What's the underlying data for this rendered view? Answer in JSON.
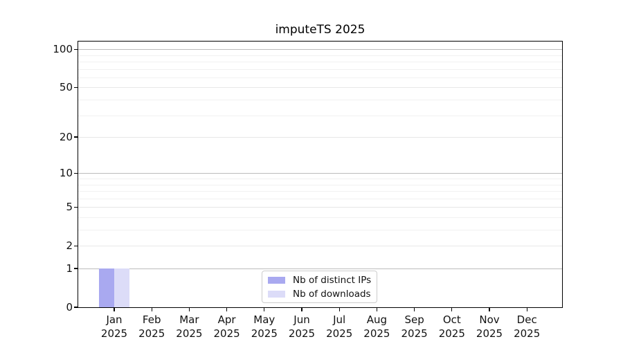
{
  "chart_data": {
    "type": "bar",
    "title": "imputeTS 2025",
    "categories": [
      "Jan",
      "Feb",
      "Mar",
      "Apr",
      "May",
      "Jun",
      "Jul",
      "Aug",
      "Sep",
      "Oct",
      "Nov",
      "Dec"
    ],
    "year": "2025",
    "series": [
      {
        "name": "Nb of distinct IPs",
        "color": "#a9a9f0",
        "values": [
          1,
          0,
          0,
          0,
          0,
          0,
          0,
          0,
          0,
          0,
          0,
          0
        ]
      },
      {
        "name": "Nb of downloads",
        "color": "#dcdcf8",
        "values": [
          1,
          0,
          0,
          0,
          0,
          0,
          0,
          0,
          0,
          0,
          0,
          0
        ]
      }
    ],
    "xlabel": "",
    "ylabel": "",
    "y_axis": {
      "scale": "log1p",
      "ticks": [
        0,
        1,
        2,
        5,
        10,
        20,
        50,
        100
      ],
      "decade_gridlines": [
        1,
        10,
        100
      ],
      "minor_gridlines": [
        3,
        4,
        6,
        7,
        8,
        9,
        30,
        40,
        60,
        70,
        80,
        90
      ],
      "max": 115
    },
    "grid": true,
    "legend_position": "bottom-center"
  }
}
